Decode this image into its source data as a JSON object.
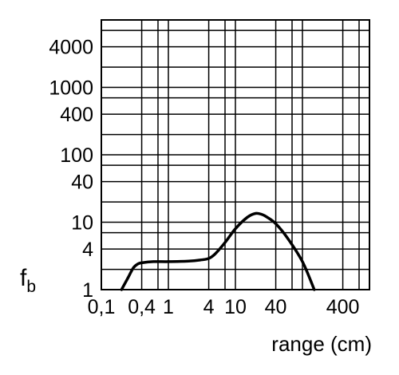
{
  "chart_data": {
    "type": "line",
    "title": "",
    "xlabel": "range (cm)",
    "ylabel": "f",
    "ylabel_subscript": "b",
    "x_scale": "log",
    "y_scale": "log",
    "xlim": [
      0.1,
      1000
    ],
    "ylim": [
      1,
      10000
    ],
    "x_ticks": [
      0.1,
      0.4,
      1,
      4,
      10,
      40,
      400
    ],
    "x_tick_labels": [
      "0,1",
      "0,4",
      "1",
      "4",
      "10",
      "40",
      "400"
    ],
    "y_ticks": [
      1,
      4,
      10,
      40,
      100,
      400,
      1000,
      4000
    ],
    "y_tick_labels": [
      "1",
      "4",
      "10",
      "40",
      "100",
      "400",
      "1000",
      "4000"
    ],
    "x_grid": [
      0.4,
      0.7,
      1,
      4,
      7,
      10,
      40,
      70,
      100,
      400,
      700
    ],
    "y_grid": [
      2,
      4,
      7,
      10,
      20,
      40,
      70,
      100,
      200,
      400,
      700,
      1000,
      2000,
      4000,
      7000
    ],
    "grid": true,
    "line_color": "#000000",
    "series": [
      {
        "x": [
          0.2,
          0.25,
          0.3,
          0.35,
          0.4,
          0.6,
          1,
          2,
          3,
          4,
          5,
          7,
          10,
          15,
          20,
          25,
          30,
          40,
          60,
          100,
          150
        ],
        "y": [
          1,
          1.5,
          2.1,
          2.4,
          2.5,
          2.6,
          2.6,
          2.65,
          2.75,
          2.9,
          3.4,
          5,
          8,
          11.8,
          13.5,
          13,
          11.8,
          9.5,
          5.8,
          2.6,
          1
        ]
      }
    ]
  }
}
